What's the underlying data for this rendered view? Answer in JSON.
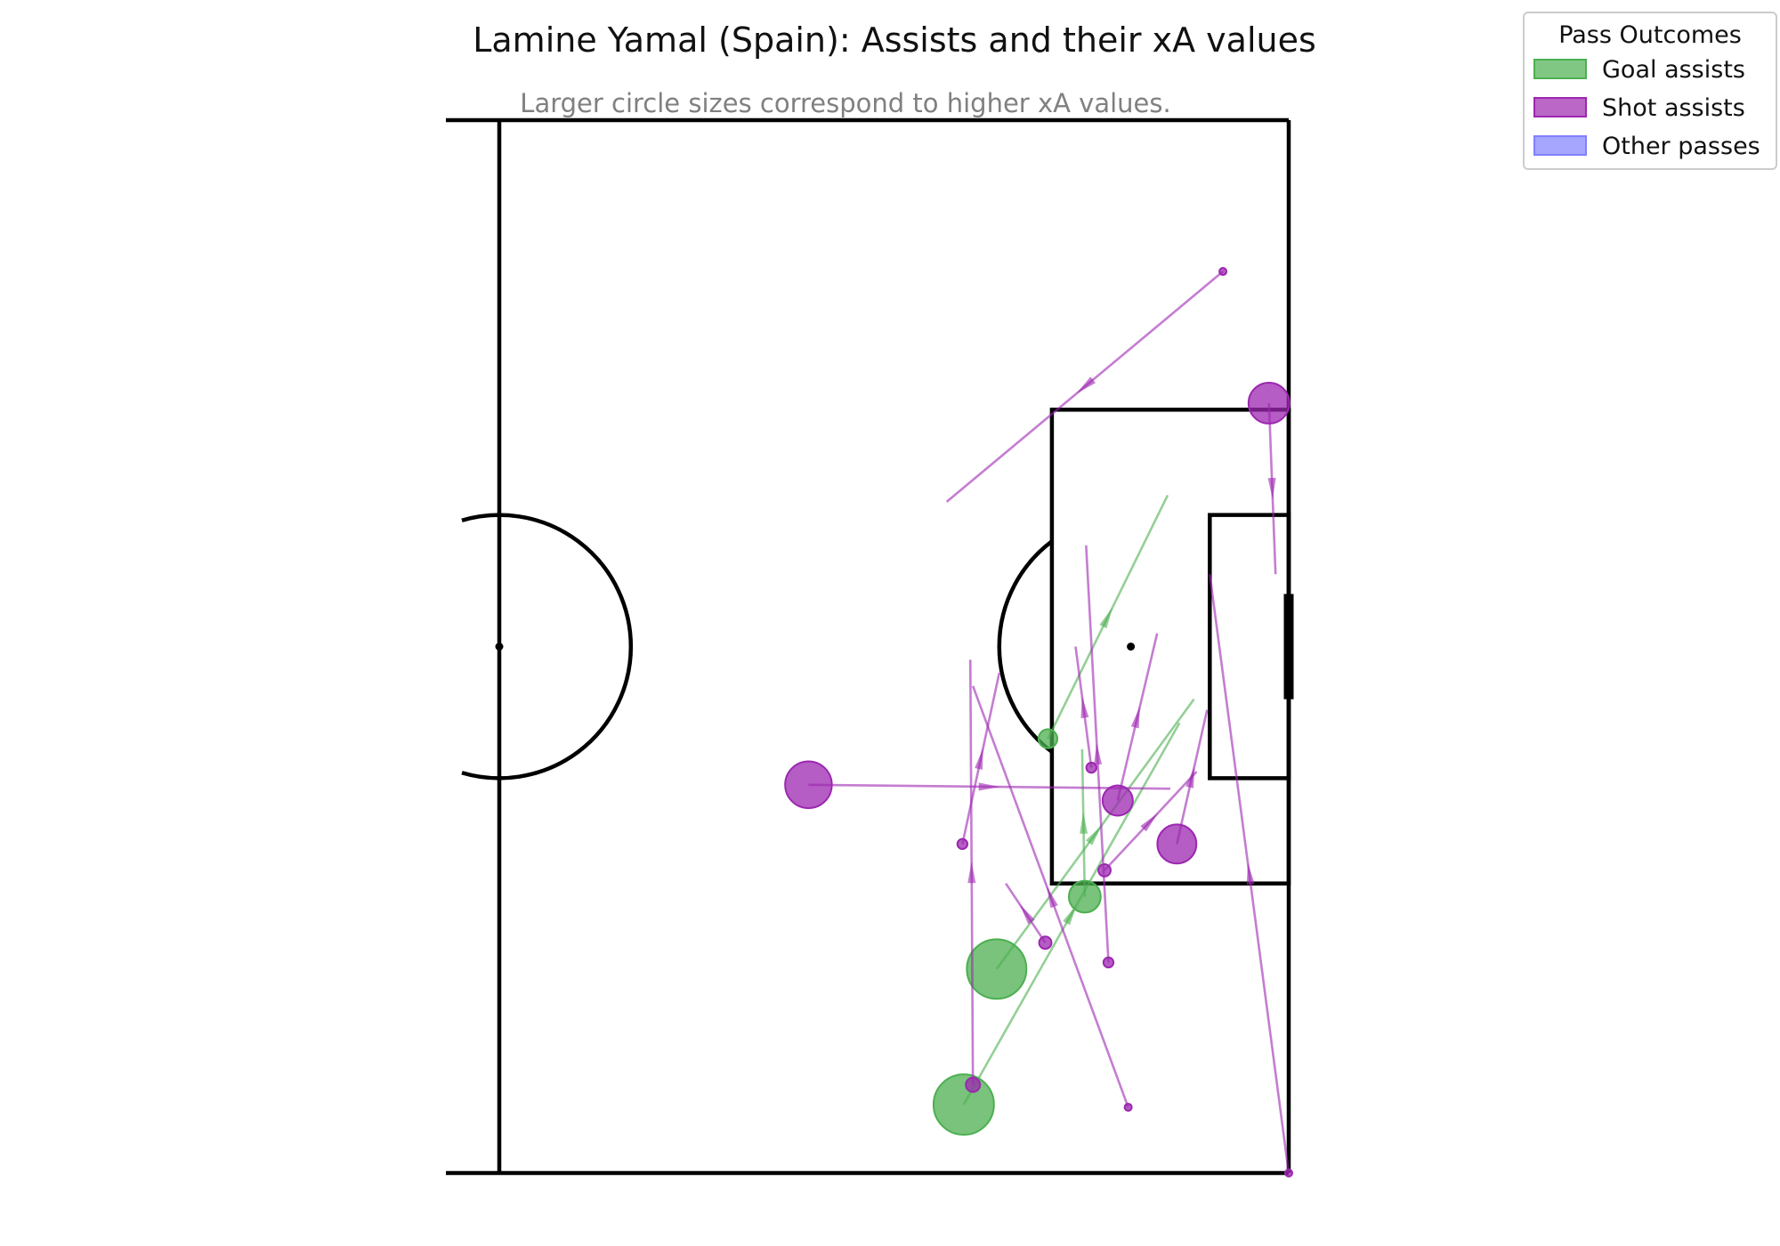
{
  "chart_data": {
    "type": "scatter",
    "title": "Lamine Yamal (Spain): Assists and their xA values",
    "subtitle": "Larger circle sizes correspond to higher xA values.",
    "xlabel": "",
    "ylabel": "",
    "xlim": [
      60,
      120
    ],
    "ylim": [
      0,
      80
    ],
    "grid": false,
    "pitch": {
      "length": 120,
      "width": 80,
      "view": "attacking-half"
    },
    "legend": {
      "title": "Pass Outcomes",
      "placement": "top-right",
      "entries": [
        {
          "label": "Goal assists",
          "color": "#4caf50"
        },
        {
          "label": "Shot assists",
          "color": "#9c27b0"
        },
        {
          "label": "Other passes",
          "color": "#8080ff"
        }
      ]
    },
    "series": [
      {
        "name": "Goal assists",
        "color": "#4caf50",
        "passes": [
          {
            "x": 97.8,
            "y": 64.5,
            "end_x": 112.8,
            "end_y": 44.0,
            "xa": 0.7
          },
          {
            "x": 95.3,
            "y": 74.8,
            "end_x": 111.7,
            "end_y": 45.8,
            "xa": 0.72
          },
          {
            "x": 104.5,
            "y": 59.0,
            "end_x": 104.3,
            "end_y": 47.8,
            "xa": 0.2
          },
          {
            "x": 101.7,
            "y": 47.0,
            "end_x": 110.8,
            "end_y": 28.5,
            "xa": 0.07
          }
        ]
      },
      {
        "name": "Shot assists",
        "color": "#9c27b0",
        "passes": [
          {
            "x": 83.5,
            "y": 50.5,
            "end_x": 111.0,
            "end_y": 50.8,
            "xa": 0.43
          },
          {
            "x": 118.5,
            "y": 21.5,
            "end_x": 119.0,
            "end_y": 34.5,
            "xa": 0.33
          },
          {
            "x": 111.5,
            "y": 55.0,
            "end_x": 113.8,
            "end_y": 44.8,
            "xa": 0.3
          },
          {
            "x": 107.0,
            "y": 51.7,
            "end_x": 110.0,
            "end_y": 39.0,
            "xa": 0.18
          },
          {
            "x": 96.0,
            "y": 73.3,
            "end_x": 95.8,
            "end_y": 41.0,
            "xa": 0.04
          },
          {
            "x": 101.5,
            "y": 62.5,
            "end_x": 98.5,
            "end_y": 58.0,
            "xa": 0.03
          },
          {
            "x": 106.0,
            "y": 57.0,
            "end_x": 113.0,
            "end_y": 49.5,
            "xa": 0.03
          },
          {
            "x": 105.0,
            "y": 49.2,
            "end_x": 103.8,
            "end_y": 40.0,
            "xa": 0.02
          },
          {
            "x": 95.2,
            "y": 55.0,
            "end_x": 98.0,
            "end_y": 42.0,
            "xa": 0.02
          },
          {
            "x": 106.3,
            "y": 64.0,
            "end_x": 104.6,
            "end_y": 32.3,
            "xa": 0.02
          },
          {
            "x": 107.8,
            "y": 75.0,
            "end_x": 96.0,
            "end_y": 43.0,
            "xa": 0.01
          },
          {
            "x": 120.0,
            "y": 80.0,
            "end_x": 114.0,
            "end_y": 34.5,
            "xa": 0.01
          },
          {
            "x": 115.0,
            "y": 11.5,
            "end_x": 94.0,
            "end_y": 29.0,
            "xa": 0.01
          }
        ]
      },
      {
        "name": "Other passes",
        "color": "#8080ff",
        "passes": []
      }
    ]
  }
}
